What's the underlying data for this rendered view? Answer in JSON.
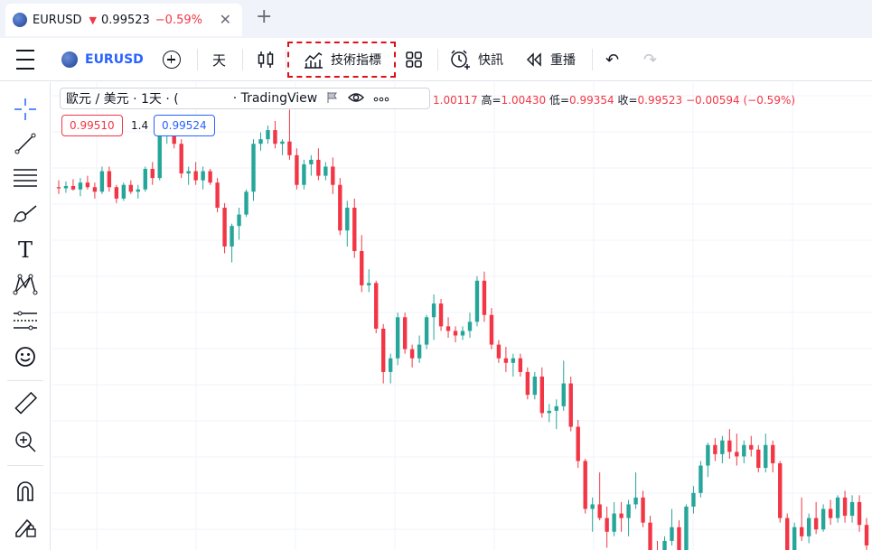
{
  "tab": {
    "symbol": "EURUSD",
    "direction_arrow": "▼",
    "price": "0.99523",
    "change": "−0.59%",
    "close_glyph": "✕",
    "new_tab_glyph": "+"
  },
  "toolbar": {
    "symbol": "EURUSD",
    "interval": "天",
    "indicators_label": "技術指標",
    "alert_label": "快訊",
    "replay_label": "重播",
    "undo_glyph": "↶",
    "redo_glyph": "↷",
    "icons": [
      "menu-icon",
      "add-symbol-icon",
      "candles-icon",
      "indicators-icon",
      "layout-grid-icon",
      "alarm-clock-icon",
      "replay-icon",
      "undo-icon",
      "redo-icon"
    ]
  },
  "legend": {
    "title": "歐元 / 美元 · 1天 · (",
    "source": "· TradingView",
    "open_label": "",
    "open": "1.00117",
    "high_label": "高=",
    "high": "1.00430",
    "low_label": "低=",
    "low": "0.99354",
    "close_label": "收=",
    "close": "0.99523",
    "change": "−0.00594 (−0.59%)",
    "bid": "0.99510",
    "spread": "1.4",
    "ask": "0.99524"
  },
  "left_tools": [
    "crosshair-icon",
    "trend-line-icon",
    "fib-retracement-icon",
    "brush-icon",
    "text-icon",
    "pattern-icon",
    "forecast-icon",
    "emoji-icon",
    "ruler-icon",
    "zoom-in-icon",
    "magnet-icon",
    "lock-pencil-icon"
  ],
  "colors": {
    "up": "#26a69a",
    "down": "#f23645",
    "accent": "#2962ff",
    "highlight": "#e0101a"
  },
  "chart_data": {
    "type": "candlestick",
    "symbol": "EURUSD",
    "ohlc": [
      [
        1.021,
        1.024,
        1.018,
        1.0205
      ],
      [
        1.0205,
        1.0235,
        1.0185,
        1.0215
      ],
      [
        1.0215,
        1.0245,
        1.0195,
        1.02
      ],
      [
        1.02,
        1.025,
        1.017,
        1.023
      ],
      [
        1.023,
        1.026,
        1.02,
        1.021
      ],
      [
        1.021,
        1.023,
        1.016,
        1.019
      ],
      [
        1.019,
        1.03,
        1.018,
        1.028
      ],
      [
        1.028,
        1.03,
        1.019,
        1.021
      ],
      [
        1.021,
        1.022,
        1.014,
        1.016
      ],
      [
        1.016,
        1.023,
        1.015,
        1.022
      ],
      [
        1.022,
        1.024,
        1.018,
        1.019
      ],
      [
        1.019,
        1.022,
        1.016,
        1.02
      ],
      [
        1.02,
        1.03,
        1.019,
        1.029
      ],
      [
        1.029,
        1.032,
        1.022,
        1.025
      ],
      [
        1.025,
        1.048,
        1.024,
        1.045
      ],
      [
        1.045,
        1.052,
        1.04,
        1.048
      ],
      [
        1.048,
        1.05,
        1.038,
        1.04
      ],
      [
        1.04,
        1.042,
        1.025,
        1.027
      ],
      [
        1.027,
        1.03,
        1.022,
        1.028
      ],
      [
        1.028,
        1.032,
        1.022,
        1.024
      ],
      [
        1.024,
        1.03,
        1.02,
        1.028
      ],
      [
        1.028,
        1.029,
        1.022,
        1.023
      ],
      [
        1.023,
        1.025,
        1.01,
        1.012
      ],
      [
        1.012,
        1.014,
        0.992,
        0.995
      ],
      [
        0.995,
        1.005,
        0.988,
        1.004
      ],
      [
        1.004,
        1.012,
        0.998,
        1.009
      ],
      [
        1.009,
        1.02,
        1.008,
        1.019
      ],
      [
        1.019,
        1.042,
        1.015,
        1.04
      ],
      [
        1.04,
        1.045,
        1.037,
        1.042
      ],
      [
        1.042,
        1.048,
        1.04,
        1.046
      ],
      [
        1.046,
        1.05,
        1.038,
        1.04
      ],
      [
        1.04,
        1.042,
        1.035,
        1.041
      ],
      [
        1.041,
        1.055,
        1.033,
        1.035
      ],
      [
        1.035,
        1.038,
        1.02,
        1.022
      ],
      [
        1.022,
        1.033,
        1.02,
        1.031
      ],
      [
        1.031,
        1.035,
        1.026,
        1.033
      ],
      [
        1.033,
        1.038,
        1.024,
        1.026
      ],
      [
        1.026,
        1.032,
        1.024,
        1.03
      ],
      [
        1.03,
        1.034,
        1.018,
        1.022
      ],
      [
        1.022,
        1.025,
        1.0,
        1.002
      ],
      [
        1.002,
        1.015,
        0.995,
        1.012
      ],
      [
        1.012,
        1.016,
        0.99,
        0.993
      ],
      [
        0.993,
        1.0,
        0.975,
        0.978
      ],
      [
        0.978,
        0.985,
        0.975,
        0.979
      ],
      [
        0.979,
        0.98,
        0.957,
        0.959
      ],
      [
        0.959,
        0.961,
        0.935,
        0.94
      ],
      [
        0.94,
        0.948,
        0.935,
        0.946
      ],
      [
        0.946,
        0.966,
        0.943,
        0.964
      ],
      [
        0.964,
        0.966,
        0.948,
        0.95
      ],
      [
        0.95,
        0.952,
        0.942,
        0.946
      ],
      [
        0.946,
        0.956,
        0.944,
        0.952
      ],
      [
        0.952,
        0.965,
        0.95,
        0.964
      ],
      [
        0.964,
        0.974,
        0.954,
        0.97
      ],
      [
        0.97,
        0.972,
        0.958,
        0.96
      ],
      [
        0.96,
        0.964,
        0.955,
        0.958
      ],
      [
        0.958,
        0.96,
        0.953,
        0.956
      ],
      [
        0.956,
        0.96,
        0.954,
        0.958
      ],
      [
        0.958,
        0.966,
        0.955,
        0.962
      ],
      [
        0.962,
        0.982,
        0.96,
        0.98
      ],
      [
        0.98,
        0.984,
        0.962,
        0.965
      ],
      [
        0.965,
        0.968,
        0.95,
        0.952
      ],
      [
        0.952,
        0.954,
        0.944,
        0.946
      ],
      [
        0.946,
        0.951,
        0.94,
        0.944
      ],
      [
        0.944,
        0.948,
        0.938,
        0.946
      ],
      [
        0.946,
        0.948,
        0.938,
        0.94
      ],
      [
        0.94,
        0.942,
        0.928,
        0.93
      ],
      [
        0.93,
        0.94,
        0.928,
        0.938
      ],
      [
        0.938,
        0.942,
        0.92,
        0.922
      ],
      [
        0.922,
        0.926,
        0.918,
        0.923
      ],
      [
        0.923,
        0.928,
        0.915,
        0.925
      ],
      [
        0.925,
        0.945,
        0.923,
        0.935
      ],
      [
        0.935,
        0.938,
        0.914,
        0.916
      ],
      [
        0.916,
        0.919,
        0.898,
        0.901
      ],
      [
        0.901,
        0.902,
        0.878,
        0.88
      ],
      [
        0.88,
        0.885,
        0.87,
        0.882
      ],
      [
        0.882,
        0.896,
        0.875,
        0.876
      ],
      [
        0.876,
        0.881,
        0.863,
        0.87
      ],
      [
        0.87,
        0.883,
        0.868,
        0.878
      ],
      [
        0.878,
        0.883,
        0.87,
        0.876
      ],
      [
        0.876,
        0.884,
        0.868,
        0.882
      ],
      [
        0.882,
        0.896,
        0.88,
        0.885
      ],
      [
        0.885,
        0.888,
        0.872,
        0.874
      ],
      [
        0.874,
        0.877,
        0.86,
        0.862
      ],
      [
        0.862,
        0.866,
        0.856,
        0.86
      ],
      [
        0.86,
        0.868,
        0.859,
        0.866
      ],
      [
        0.866,
        0.88,
        0.864,
        0.872
      ],
      [
        0.872,
        0.875,
        0.858,
        0.86
      ],
      [
        0.86,
        0.882,
        0.859,
        0.881
      ],
      [
        0.881,
        0.89,
        0.878,
        0.887
      ],
      [
        0.887,
        0.901,
        0.885,
        0.899
      ],
      [
        0.899,
        0.909,
        0.894,
        0.908
      ],
      [
        0.908,
        0.911,
        0.901,
        0.904
      ],
      [
        0.904,
        0.912,
        0.9,
        0.91
      ],
      [
        0.91,
        0.915,
        0.902,
        0.905
      ],
      [
        0.905,
        0.913,
        0.899,
        0.903
      ],
      [
        0.903,
        0.91,
        0.9,
        0.908
      ],
      [
        0.908,
        0.912,
        0.903,
        0.906
      ],
      [
        0.906,
        0.908,
        0.896,
        0.898
      ],
      [
        0.898,
        0.913,
        0.896,
        0.908
      ],
      [
        0.908,
        0.91,
        0.896,
        0.9
      ],
      [
        0.9,
        0.901,
        0.874,
        0.876
      ],
      [
        0.876,
        0.878,
        0.86,
        0.862
      ],
      [
        0.862,
        0.874,
        0.86,
        0.872
      ],
      [
        0.872,
        0.885,
        0.866,
        0.868
      ],
      [
        0.868,
        0.878,
        0.865,
        0.876
      ],
      [
        0.876,
        0.883,
        0.869,
        0.871
      ],
      [
        0.871,
        0.882,
        0.87,
        0.88
      ],
      [
        0.88,
        0.884,
        0.873,
        0.876
      ],
      [
        0.876,
        0.886,
        0.874,
        0.885
      ],
      [
        0.885,
        0.888,
        0.874,
        0.877
      ],
      [
        0.877,
        0.886,
        0.874,
        0.883
      ],
      [
        0.883,
        0.886,
        0.87,
        0.873
      ],
      [
        0.873,
        0.876,
        0.862,
        0.864
      ]
    ],
    "ylim": [
      0.862,
      1.067
    ],
    "grid": true,
    "title": "",
    "xlabel": "",
    "ylabel": ""
  }
}
